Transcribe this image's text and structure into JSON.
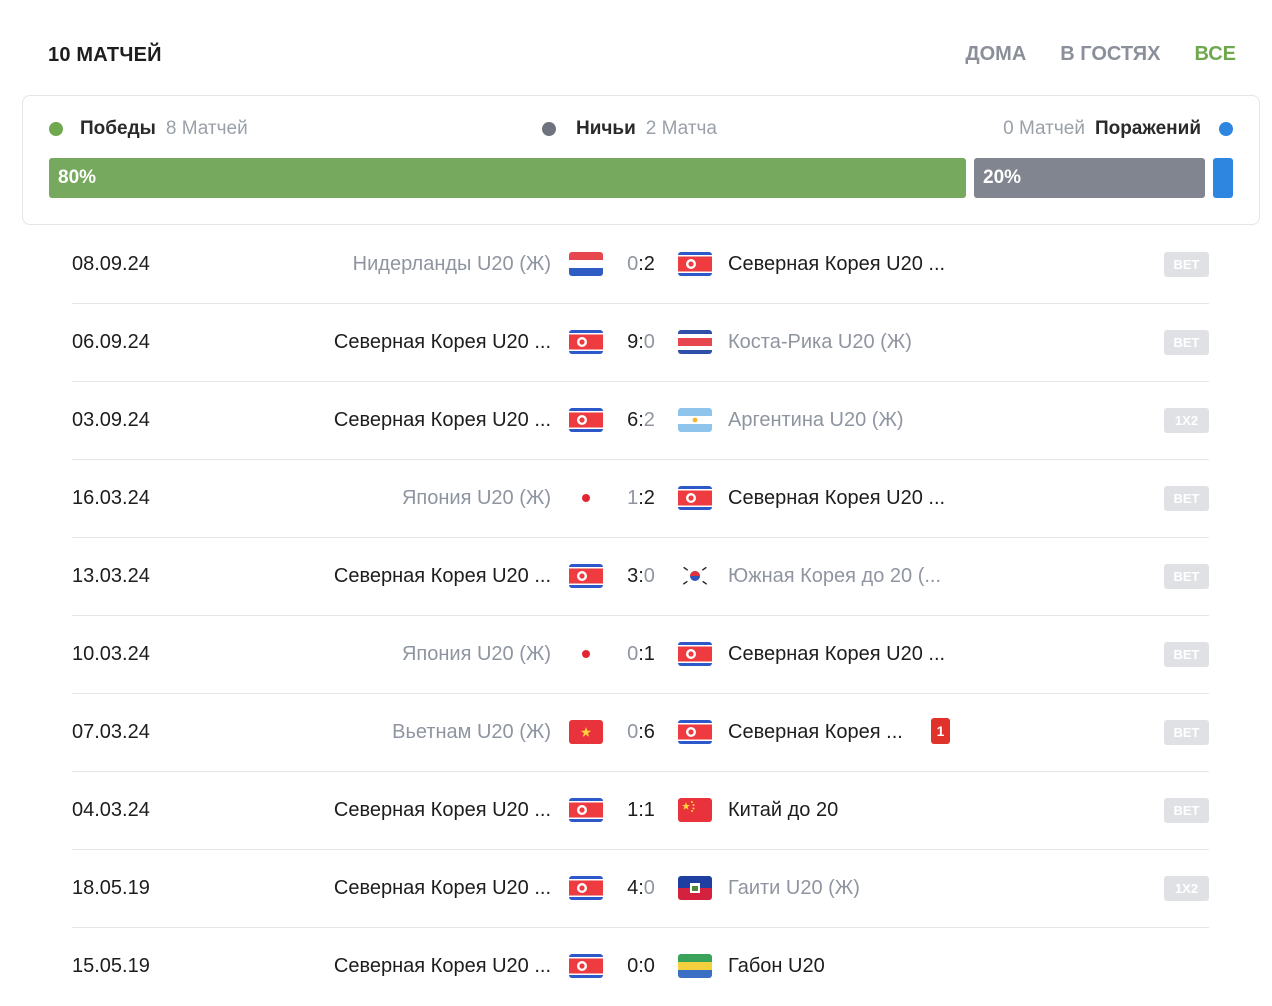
{
  "header": {
    "title": "10 МАТЧЕЙ",
    "filters": [
      "ДОМА",
      "В ГОСТЯХ",
      "ВСЕ"
    ],
    "active_filter": "ВСЕ"
  },
  "summary": {
    "wins_label": "Победы",
    "wins_count": "8 Матчей",
    "wins_percent": "80%",
    "wins_value": 80,
    "draws_label": "Ничьи",
    "draws_count": "2 Матча",
    "draws_percent": "20%",
    "draws_value": 20,
    "losses_label": "Поражений",
    "losses_count": "0 Матчей",
    "losses_value": 0,
    "colors": {
      "wins": "#76a95e",
      "draws": "#81858f",
      "losses": "#2f86e0"
    }
  },
  "matches": [
    {
      "date": "08.09.24",
      "home": "Нидерланды U20 (Ж)",
      "home_flag": "netherlands-flag",
      "home_goals": "0",
      "away_goals": "2",
      "away": "Северная Корея U20 ...",
      "away_flag": "north-korea-flag",
      "winner": "away",
      "bet": "BET"
    },
    {
      "date": "06.09.24",
      "home": "Северная Корея U20 ...",
      "home_flag": "north-korea-flag",
      "home_goals": "9",
      "away_goals": "0",
      "away": "Коста-Рика U20 (Ж)",
      "away_flag": "costa-rica-flag",
      "winner": "home",
      "bet": "BET"
    },
    {
      "date": "03.09.24",
      "home": "Северная Корея U20 ...",
      "home_flag": "north-korea-flag",
      "home_goals": "6",
      "away_goals": "2",
      "away": "Аргентина U20 (Ж)",
      "away_flag": "argentina-flag",
      "winner": "home",
      "bet": "1X2"
    },
    {
      "date": "16.03.24",
      "home": "Япония U20 (Ж)",
      "home_flag": "japan-flag",
      "home_goals": "1",
      "away_goals": "2",
      "away": "Северная Корея U20 ...",
      "away_flag": "north-korea-flag",
      "winner": "away",
      "bet": "BET"
    },
    {
      "date": "13.03.24",
      "home": "Северная Корея U20 ...",
      "home_flag": "north-korea-flag",
      "home_goals": "3",
      "away_goals": "0",
      "away": "Южная Корея до 20 (...",
      "away_flag": "south-korea-flag",
      "winner": "home",
      "bet": "BET"
    },
    {
      "date": "10.03.24",
      "home": "Япония U20 (Ж)",
      "home_flag": "japan-flag",
      "home_goals": "0",
      "away_goals": "1",
      "away": "Северная Корея U20 ...",
      "away_flag": "north-korea-flag",
      "winner": "away",
      "bet": "BET"
    },
    {
      "date": "07.03.24",
      "home": "Вьетнам U20 (Ж)",
      "home_flag": "vietnam-flag",
      "home_goals": "0",
      "away_goals": "6",
      "away": "Северная Корея ...",
      "away_flag": "north-korea-flag",
      "winner": "away",
      "bet": "BET",
      "red_card": "1"
    },
    {
      "date": "04.03.24",
      "home": "Северная Корея U20 ...",
      "home_flag": "north-korea-flag",
      "home_goals": "1",
      "away_goals": "1",
      "away": "Китай до 20",
      "away_flag": "china-flag",
      "winner": "draw",
      "bet": "BET"
    },
    {
      "date": "18.05.19",
      "home": "Северная Корея U20 ...",
      "home_flag": "north-korea-flag",
      "home_goals": "4",
      "away_goals": "0",
      "away": "Гаити U20 (Ж)",
      "away_flag": "haiti-flag",
      "winner": "home",
      "bet": "1X2"
    },
    {
      "date": "15.05.19",
      "home": "Северная Корея U20 ...",
      "home_flag": "north-korea-flag",
      "home_goals": "0",
      "away_goals": "0",
      "away": "Габон U20",
      "away_flag": "gabon-flag",
      "winner": "draw",
      "bet": ""
    }
  ]
}
